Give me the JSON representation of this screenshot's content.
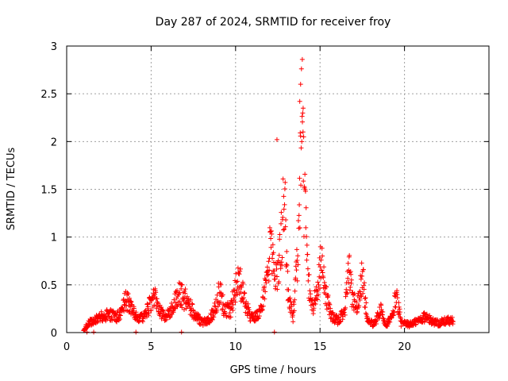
{
  "chart_data": {
    "type": "scatter",
    "title": "Day 287 of 2024, SRMTID for receiver froy",
    "xlabel": "GPS time / hours",
    "ylabel": "SRMTID / TECUs",
    "xlim": [
      0,
      25
    ],
    "ylim": [
      0,
      3
    ],
    "xticks": [
      0,
      5,
      10,
      15,
      20
    ],
    "xtick_labels": [
      "0",
      "5",
      "10",
      "15",
      "20"
    ],
    "yticks": [
      0,
      0.5,
      1,
      1.5,
      2,
      2.5,
      3
    ],
    "ytick_labels": [
      "0",
      "0.5",
      "1",
      "1.5",
      "2",
      "2.5",
      "3"
    ],
    "grid": true,
    "marker": "+",
    "color": "#ff0000",
    "series": [
      {
        "name": "SRMTID",
        "profile": [
          [
            1.0,
            0.03
          ],
          [
            1.3,
            0.12
          ],
          [
            1.8,
            0.17
          ],
          [
            2.2,
            0.22
          ],
          [
            2.6,
            0.22
          ],
          [
            3.0,
            0.2
          ],
          [
            3.3,
            0.3
          ],
          [
            3.5,
            0.42
          ],
          [
            3.7,
            0.35
          ],
          [
            3.9,
            0.28
          ],
          [
            4.2,
            0.16
          ],
          [
            4.6,
            0.2
          ],
          [
            5.0,
            0.38
          ],
          [
            5.2,
            0.45
          ],
          [
            5.4,
            0.3
          ],
          [
            5.8,
            0.2
          ],
          [
            6.1,
            0.25
          ],
          [
            6.5,
            0.42
          ],
          [
            6.7,
            0.5
          ],
          [
            6.9,
            0.45
          ],
          [
            7.1,
            0.4
          ],
          [
            7.5,
            0.25
          ],
          [
            8.0,
            0.13
          ],
          [
            8.4,
            0.15
          ],
          [
            8.8,
            0.3
          ],
          [
            9.1,
            0.58
          ],
          [
            9.3,
            0.3
          ],
          [
            9.7,
            0.28
          ],
          [
            10.0,
            0.55
          ],
          [
            10.2,
            0.7
          ],
          [
            10.5,
            0.42
          ],
          [
            10.9,
            0.18
          ],
          [
            11.2,
            0.2
          ],
          [
            11.5,
            0.28
          ],
          [
            11.9,
            0.7
          ],
          [
            12.1,
            1.2
          ],
          [
            12.3,
            0.6
          ],
          [
            12.6,
            0.9
          ],
          [
            12.9,
            1.7
          ],
          [
            13.1,
            0.5
          ],
          [
            13.4,
            0.2
          ],
          [
            13.7,
            1.0
          ],
          [
            13.9,
            2.8
          ],
          [
            14.05,
            1.8
          ],
          [
            14.3,
            0.6
          ],
          [
            14.6,
            0.35
          ],
          [
            14.9,
            0.6
          ],
          [
            15.1,
            1.0
          ],
          [
            15.3,
            0.5
          ],
          [
            15.7,
            0.2
          ],
          [
            16.1,
            0.15
          ],
          [
            16.5,
            0.3
          ],
          [
            16.7,
            0.9
          ],
          [
            16.9,
            0.45
          ],
          [
            17.2,
            0.3
          ],
          [
            17.5,
            0.75
          ],
          [
            17.8,
            0.15
          ],
          [
            18.2,
            0.1
          ],
          [
            18.6,
            0.28
          ],
          [
            18.9,
            0.1
          ],
          [
            19.3,
            0.2
          ],
          [
            19.5,
            0.5
          ],
          [
            19.8,
            0.12
          ],
          [
            20.3,
            0.1
          ],
          [
            20.8,
            0.15
          ],
          [
            21.2,
            0.2
          ],
          [
            21.6,
            0.15
          ],
          [
            22.0,
            0.12
          ],
          [
            22.5,
            0.15
          ],
          [
            22.9,
            0.15
          ]
        ],
        "outliers": [
          [
            1.2,
            0.005
          ],
          [
            1.6,
            0.005
          ],
          [
            4.1,
            0.005
          ],
          [
            6.8,
            0.005
          ],
          [
            12.3,
            0.005
          ],
          [
            12.45,
            2.02
          ],
          [
            13.95,
            2.86
          ],
          [
            13.8,
            2.42
          ],
          [
            13.85,
            2.6
          ],
          [
            14.0,
            2.35
          ]
        ]
      }
    ]
  }
}
